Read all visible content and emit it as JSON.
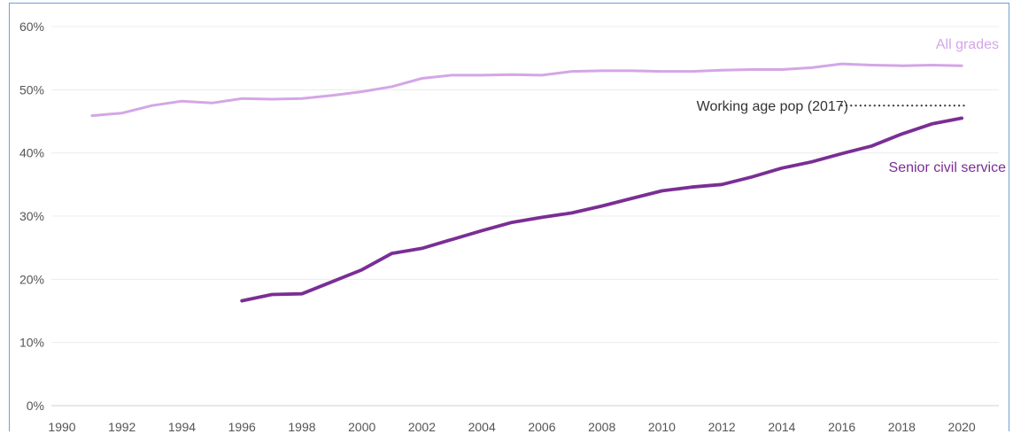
{
  "chart_data": {
    "type": "line",
    "title": "",
    "xlabel": "",
    "ylabel": "",
    "xlim": [
      1990,
      2021
    ],
    "ylim": [
      0,
      60
    ],
    "x_ticks": [
      1990,
      1992,
      1994,
      1996,
      1998,
      2000,
      2002,
      2004,
      2006,
      2008,
      2010,
      2012,
      2014,
      2016,
      2018,
      2020
    ],
    "y_ticks": [
      0,
      10,
      20,
      30,
      40,
      50,
      60
    ],
    "y_tick_labels": [
      "0%",
      "10%",
      "20%",
      "30%",
      "40%",
      "50%",
      "60%"
    ],
    "grid": "horizontal",
    "legend": "direct-labels",
    "series": [
      {
        "name": "All grades",
        "color": "#d4a6e6",
        "style": "solid",
        "x": [
          1991,
          1992,
          1993,
          1994,
          1995,
          1996,
          1997,
          1998,
          1999,
          2000,
          2001,
          2002,
          2003,
          2004,
          2005,
          2006,
          2007,
          2008,
          2009,
          2010,
          2011,
          2012,
          2013,
          2014,
          2015,
          2016,
          2017,
          2018,
          2019,
          2020
        ],
        "values": [
          45.9,
          46.3,
          47.5,
          48.2,
          47.9,
          48.6,
          48.5,
          48.6,
          49.1,
          49.7,
          50.5,
          51.8,
          52.3,
          52.3,
          52.4,
          52.3,
          52.9,
          53.0,
          53.0,
          52.9,
          52.9,
          53.1,
          53.2,
          53.2,
          53.5,
          54.1,
          53.9,
          53.8,
          53.9,
          53.8
        ]
      },
      {
        "name": "Senior civil service",
        "color": "#7a2e95",
        "style": "solid",
        "x": [
          1996,
          1997,
          1998,
          1999,
          2000,
          2001,
          2002,
          2003,
          2004,
          2005,
          2006,
          2007,
          2008,
          2009,
          2010,
          2011,
          2012,
          2013,
          2014,
          2015,
          2016,
          2017,
          2018,
          2019,
          2020
        ],
        "values": [
          16.6,
          17.6,
          17.7,
          19.6,
          21.5,
          24.1,
          24.9,
          26.3,
          27.7,
          29.0,
          29.8,
          30.5,
          31.6,
          32.8,
          34.0,
          34.6,
          35.0,
          36.2,
          37.6,
          38.6,
          39.9,
          41.1,
          43.0,
          44.6,
          45.5
        ]
      },
      {
        "name": "Working age pop (2017)",
        "color": "#333333",
        "style": "dotted",
        "x": [
          2016.0,
          2020.2
        ],
        "values": [
          47.5,
          47.5
        ]
      }
    ]
  }
}
